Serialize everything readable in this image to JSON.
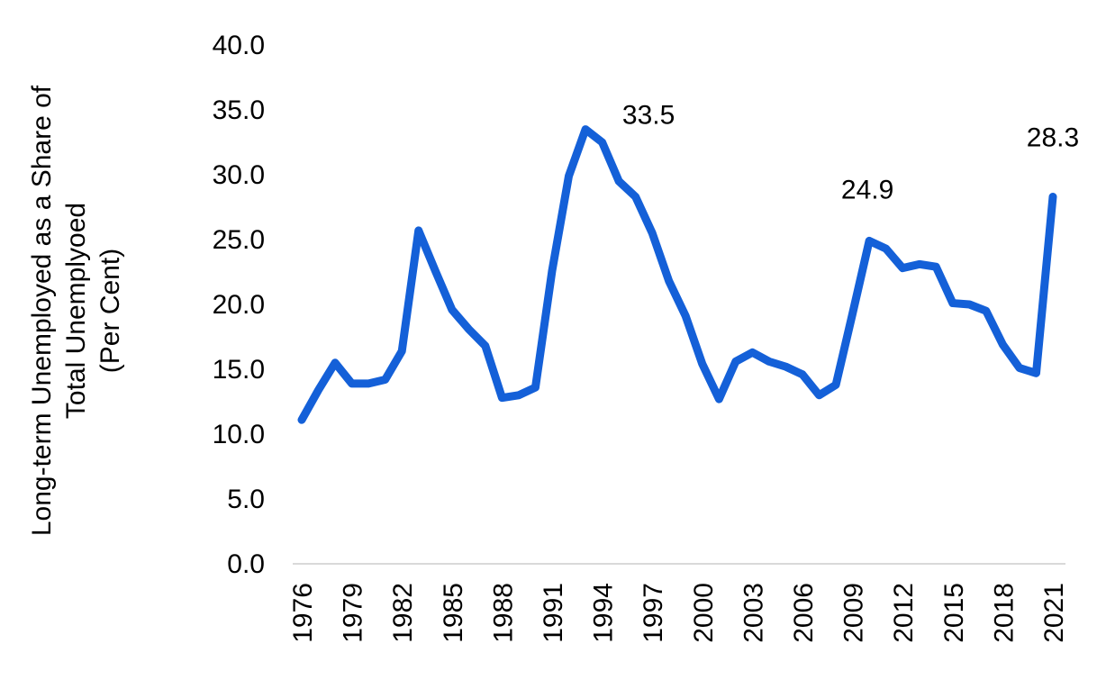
{
  "chart_data": {
    "type": "line",
    "title": "",
    "xlabel": "",
    "ylabel_lines": [
      "Long-term Unemployed as a Share of",
      "Total Unemplyoed",
      "(Per Cent)"
    ],
    "ylim": [
      0,
      40
    ],
    "yticks": [
      "0.0",
      "5.0",
      "10.0",
      "15.0",
      "20.0",
      "25.0",
      "30.0",
      "35.0",
      "40.0"
    ],
    "xtick_labels": [
      "1976",
      "1979",
      "1982",
      "1985",
      "1988",
      "1991",
      "1994",
      "1997",
      "2000",
      "2003",
      "2006",
      "2009",
      "2012",
      "2015",
      "2018",
      "2021"
    ],
    "x": [
      1976,
      1977,
      1978,
      1979,
      1980,
      1981,
      1982,
      1983,
      1984,
      1985,
      1986,
      1987,
      1988,
      1989,
      1990,
      1991,
      1992,
      1993,
      1994,
      1995,
      1996,
      1997,
      1998,
      1999,
      2000,
      2001,
      2002,
      2003,
      2004,
      2005,
      2006,
      2007,
      2008,
      2009,
      2010,
      2011,
      2012,
      2013,
      2014,
      2015,
      2016,
      2017,
      2018,
      2019,
      2020,
      2021
    ],
    "series": [
      {
        "values": [
          11.1,
          13.4,
          15.5,
          13.9,
          13.9,
          14.2,
          16.4,
          25.7,
          22.6,
          19.6,
          18.1,
          16.8,
          12.8,
          13.0,
          13.6,
          22.6,
          29.9,
          33.5,
          32.5,
          29.5,
          28.3,
          25.5,
          21.8,
          19.1,
          15.4,
          12.7,
          15.6,
          16.3,
          15.6,
          15.2,
          14.6,
          13.0,
          13.8,
          19.3,
          24.9,
          24.3,
          22.8,
          23.1,
          22.9,
          20.1,
          20.0,
          19.5,
          16.9,
          15.1,
          14.7,
          28.3
        ]
      }
    ],
    "annotations": [
      {
        "x": 1993,
        "value": "33.5"
      },
      {
        "x": 2010,
        "value": "24.9"
      },
      {
        "x": 2021,
        "value": "28.3"
      }
    ],
    "line_color": "#1460D8",
    "grid": false,
    "legend": "none"
  }
}
